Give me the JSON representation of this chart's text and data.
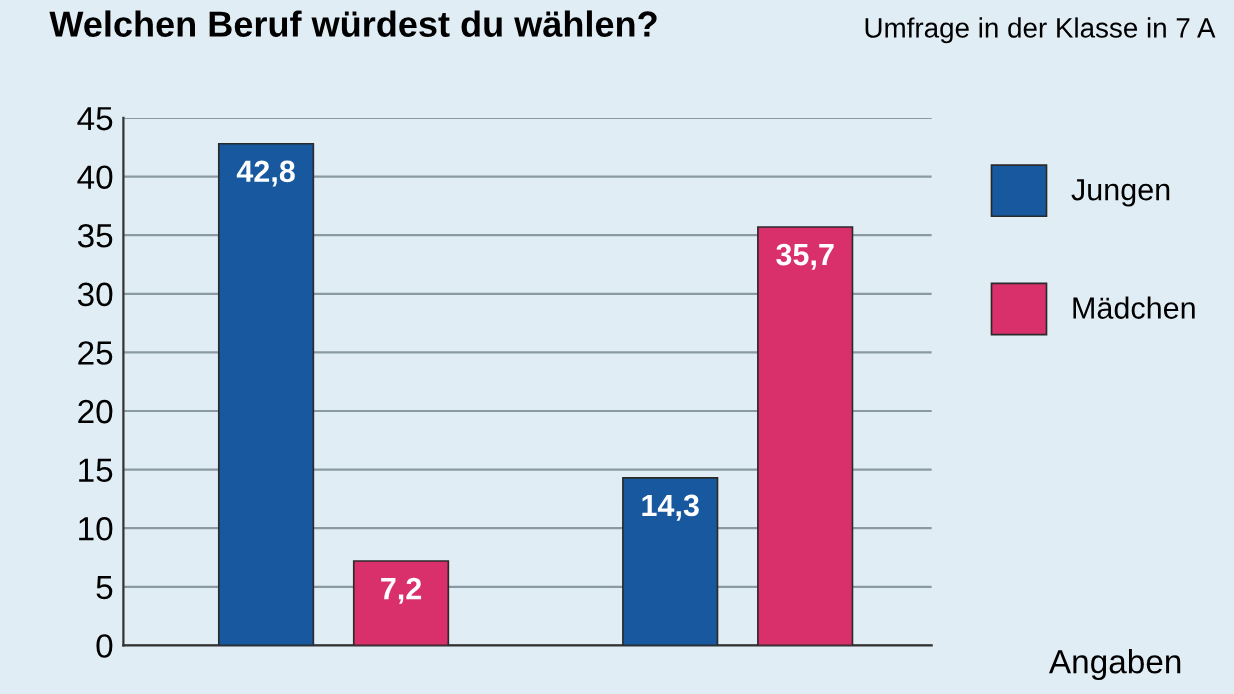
{
  "chart_data": {
    "type": "bar",
    "title": "Welchen Beruf würdest du wählen?",
    "subtitle": "Umfrage in der Klasse in 7 A",
    "categories": [
      null,
      null
    ],
    "series": [
      {
        "name": "Jungen",
        "color": "#17589f",
        "values": [
          42.8,
          14.3
        ],
        "value_labels": [
          "42,8",
          "14,3"
        ]
      },
      {
        "name": "Mädchen",
        "color": "#d9306c",
        "values": [
          7.2,
          35.7
        ],
        "value_labels": [
          "7,2",
          "35,7"
        ]
      }
    ],
    "ylim": [
      0,
      45
    ],
    "yticks": [
      0,
      5,
      10,
      15,
      20,
      25,
      30,
      35,
      40,
      45
    ],
    "grid": "y",
    "legend": "right",
    "annotations": [
      "Angaben"
    ]
  }
}
